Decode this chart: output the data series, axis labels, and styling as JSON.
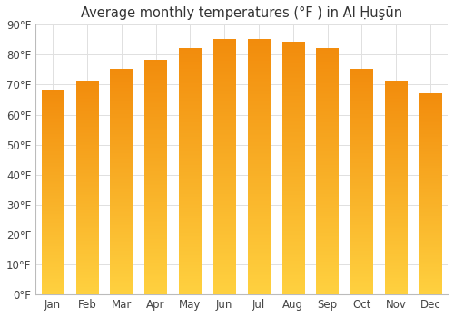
{
  "title": "Average monthly temperatures (°F ) in Al Ḥuşūn",
  "months": [
    "Jan",
    "Feb",
    "Mar",
    "Apr",
    "May",
    "Jun",
    "Jul",
    "Aug",
    "Sep",
    "Oct",
    "Nov",
    "Dec"
  ],
  "values": [
    68,
    71,
    75,
    78,
    82,
    85,
    85,
    84,
    82,
    75,
    71,
    67
  ],
  "ylim": [
    0,
    90
  ],
  "yticks": [
    0,
    10,
    20,
    30,
    40,
    50,
    60,
    70,
    80,
    90
  ],
  "ytick_labels": [
    "0°F",
    "10°F",
    "20°F",
    "30°F",
    "40°F",
    "50°F",
    "60°F",
    "70°F",
    "80°F",
    "90°F"
  ],
  "background_color": "#ffffff",
  "grid_color": "#e0e0e0",
  "bar_color_main": "#FFA500",
  "bar_color_light": "#FFD060",
  "bar_color_dark": "#E08000",
  "title_fontsize": 10.5,
  "tick_fontsize": 8.5,
  "bar_width": 0.65
}
